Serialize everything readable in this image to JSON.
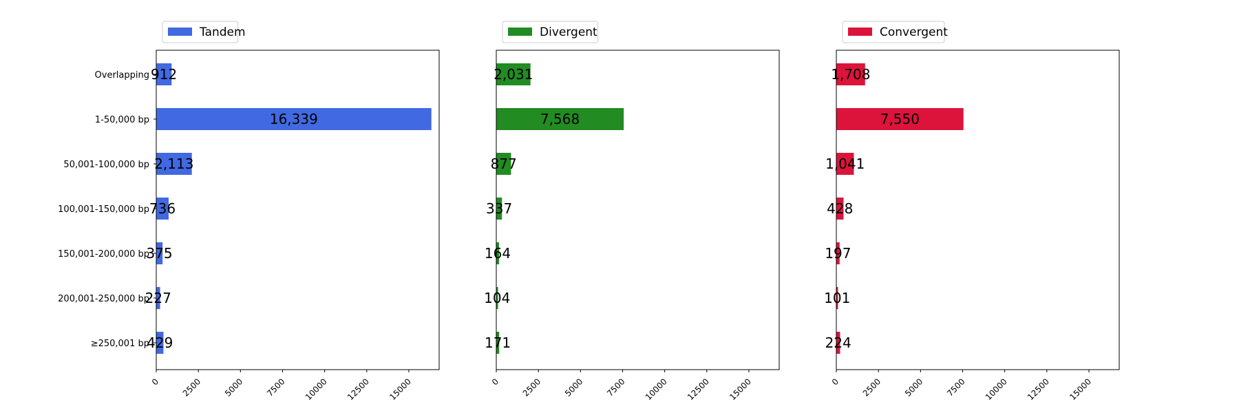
{
  "chart_data": {
    "type": "bar",
    "orientation": "horizontal",
    "categories": [
      "Overlapping",
      "1-50,000 bp",
      "50,001-100,000 bp",
      "100,001-150,000 bp",
      "150,001-200,000 bp",
      "200,001-250,000 bp",
      "≥250,001 bp"
    ],
    "xlim": [
      0,
      16800
    ],
    "xticks": [
      "0",
      "2500",
      "5000",
      "7500",
      "10000",
      "12500",
      "15000"
    ],
    "xtick_values": [
      0,
      2500,
      5000,
      7500,
      10000,
      12500,
      15000
    ],
    "grid": false,
    "legend_position": "top-left (above each panel)",
    "panels": [
      {
        "name": "Tandem",
        "color": "#4169e1",
        "values": [
          912,
          16339,
          2113,
          736,
          375,
          227,
          429
        ],
        "labels": [
          "912",
          "16,339",
          "2,113",
          "736",
          "375",
          "227",
          "429"
        ]
      },
      {
        "name": "Divergent",
        "color": "#228b22",
        "values": [
          2031,
          7568,
          877,
          337,
          164,
          104,
          171
        ],
        "labels": [
          "2,031",
          "7,568",
          "877",
          "337",
          "164",
          "104",
          "171"
        ]
      },
      {
        "name": "Convergent",
        "color": "#dc143c",
        "values": [
          1708,
          7550,
          1041,
          428,
          197,
          101,
          224
        ],
        "labels": [
          "1,708",
          "7,550",
          "1,041",
          "428",
          "197",
          "101",
          "224"
        ]
      }
    ]
  }
}
